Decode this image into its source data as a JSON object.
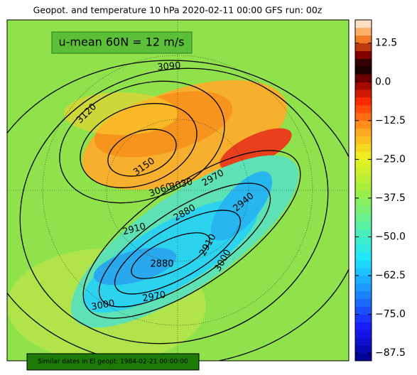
{
  "title": "Geopot. and temperature 10 hPa 2020-02-11 00:00 GFS run: 00z",
  "annotation": "u-mean 60N = 12 m/s",
  "footer": "Similar dates in El geopt: 1984-02-21 00:00:00",
  "colorbar": {
    "range": [
      -90,
      20
    ],
    "ticks": [
      {
        "value": 12.5,
        "label": "12.5"
      },
      {
        "value": 0,
        "label": "0.0"
      },
      {
        "value": -12.5,
        "label": "−12.5"
      },
      {
        "value": -25,
        "label": "−25.0"
      },
      {
        "value": -37.5,
        "label": "−37.5"
      },
      {
        "value": -50,
        "label": "−50.0"
      },
      {
        "value": -62.5,
        "label": "−62.5"
      },
      {
        "value": -75,
        "label": "−75.0"
      },
      {
        "value": -87.5,
        "label": "−87.5"
      }
    ]
  },
  "contour_labels": [
    3090,
    3120,
    3150,
    3060,
    3030,
    2970,
    2880,
    2910,
    2940,
    2910,
    3000,
    2880,
    2970,
    3000
  ]
}
